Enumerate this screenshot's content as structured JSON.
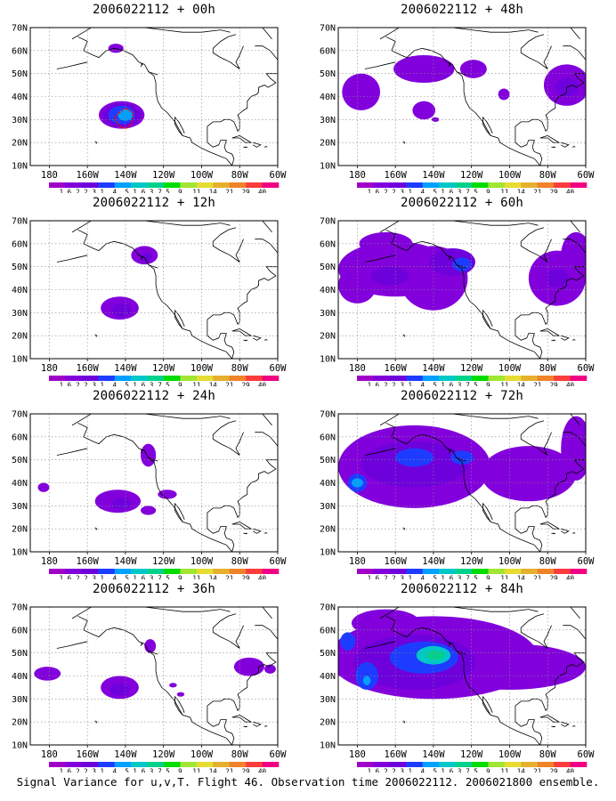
{
  "footer": "Signal Variance for u,v,T. Flight 46. Observation time 2006022112. 2006021800 ensemble.",
  "colorbar": {
    "labels": [
      "1.6",
      "2.2",
      "3.1",
      "4",
      "5.1",
      "6.3",
      "7.5",
      "9",
      "11",
      "14",
      "21",
      "29",
      "40"
    ],
    "colors": [
      "#a000c8",
      "#8200dc",
      "#6e00dc",
      "#1e3cff",
      "#00a0ff",
      "#00c8c8",
      "#00d28c",
      "#00dc00",
      "#a0e632",
      "#e6dc32",
      "#e6af2d",
      "#f08228",
      "#fa3c3c",
      "#f00082"
    ]
  },
  "chart_data": [
    {
      "type": "heatmap",
      "title": "2006022112 + 00h",
      "lon_ticks": [
        "180",
        "160W",
        "140W",
        "120W",
        "100W",
        "80W",
        "60W"
      ],
      "lat_ticks": [
        "10N",
        "20N",
        "30N",
        "40N",
        "50N",
        "60N",
        "70N"
      ],
      "xlim": [
        -190,
        -60
      ],
      "ylim": [
        10,
        70
      ],
      "grid": true,
      "region": "North Pacific / North America",
      "blobs": [
        {
          "lon": -142,
          "lat": 32,
          "rx": 12,
          "ry": 6,
          "level": 1.6
        },
        {
          "lon": -142,
          "lat": 32,
          "rx": 10,
          "ry": 5,
          "level": 2.2
        },
        {
          "lon": -142,
          "lat": 32,
          "rx": 7,
          "ry": 4,
          "level": 3.1
        },
        {
          "lon": -140,
          "lat": 32,
          "rx": 4,
          "ry": 2.5,
          "level": 4
        },
        {
          "lon": -145,
          "lat": 61,
          "rx": 4,
          "ry": 2,
          "level": 1.6
        }
      ],
      "observations": {
        "color": "#ff0000",
        "description": "flight 46 track"
      }
    },
    {
      "type": "heatmap",
      "title": "2006022112 + 48h",
      "lon_ticks": [
        "180",
        "160W",
        "140W",
        "120W",
        "100W",
        "80W",
        "60W"
      ],
      "lat_ticks": [
        "10N",
        "20N",
        "30N",
        "40N",
        "50N",
        "60N",
        "70N"
      ],
      "xlim": [
        -190,
        -60
      ],
      "ylim": [
        10,
        70
      ],
      "grid": true,
      "blobs": [
        {
          "lon": -178,
          "lat": 42,
          "rx": 10,
          "ry": 8,
          "level": 1.6
        },
        {
          "lon": -145,
          "lat": 52,
          "rx": 16,
          "ry": 6,
          "level": 1.6
        },
        {
          "lon": -145,
          "lat": 34,
          "rx": 6,
          "ry": 4,
          "level": 1.6
        },
        {
          "lon": -119,
          "lat": 52,
          "rx": 7,
          "ry": 4,
          "level": 1.6
        },
        {
          "lon": -103,
          "lat": 41,
          "rx": 3,
          "ry": 2.5,
          "level": 1.6
        },
        {
          "lon": -70,
          "lat": 45,
          "rx": 12,
          "ry": 9,
          "level": 1.6
        },
        {
          "lon": -70,
          "lat": 44,
          "rx": 6,
          "ry": 4,
          "level": 2.2
        },
        {
          "lon": -139,
          "lat": 30,
          "rx": 2,
          "ry": 1,
          "level": 1.6
        }
      ]
    },
    {
      "type": "heatmap",
      "title": "2006022112 + 12h",
      "lon_ticks": [
        "180",
        "160W",
        "140W",
        "120W",
        "100W",
        "80W",
        "60W"
      ],
      "lat_ticks": [
        "10N",
        "20N",
        "30N",
        "40N",
        "50N",
        "60N",
        "70N"
      ],
      "xlim": [
        -190,
        -60
      ],
      "ylim": [
        10,
        70
      ],
      "grid": true,
      "blobs": [
        {
          "lon": -143,
          "lat": 32,
          "rx": 10,
          "ry": 5,
          "level": 1.6
        },
        {
          "lon": -142,
          "lat": 31,
          "rx": 5,
          "ry": 3,
          "level": 2.2
        },
        {
          "lon": -130,
          "lat": 55,
          "rx": 7,
          "ry": 4,
          "level": 1.6
        },
        {
          "lon": -129,
          "lat": 54,
          "rx": 3,
          "ry": 2,
          "level": 2.2
        }
      ]
    },
    {
      "type": "heatmap",
      "title": "2006022112 + 60h",
      "lon_ticks": [
        "180",
        "160W",
        "140W",
        "120W",
        "100W",
        "80W",
        "60W"
      ],
      "lat_ticks": [
        "10N",
        "20N",
        "30N",
        "40N",
        "50N",
        "60N",
        "70N"
      ],
      "xlim": [
        -190,
        -60
      ],
      "ylim": [
        10,
        70
      ],
      "grid": true,
      "blobs": [
        {
          "lon": -160,
          "lat": 49,
          "rx": 30,
          "ry": 12,
          "level": 1.6
        },
        {
          "lon": -165,
          "lat": 60,
          "rx": 14,
          "ry": 5,
          "level": 1.6
        },
        {
          "lon": -140,
          "lat": 45,
          "rx": 18,
          "ry": 14,
          "level": 1.6
        },
        {
          "lon": -180,
          "lat": 42,
          "rx": 10,
          "ry": 8,
          "level": 1.6
        },
        {
          "lon": -130,
          "lat": 52,
          "rx": 12,
          "ry": 6,
          "level": 2.2
        },
        {
          "lon": -125,
          "lat": 51,
          "rx": 5,
          "ry": 3,
          "level": 3.1
        },
        {
          "lon": -163,
          "lat": 46,
          "rx": 10,
          "ry": 4,
          "level": 2.2
        },
        {
          "lon": -75,
          "lat": 45,
          "rx": 15,
          "ry": 12,
          "level": 1.6
        },
        {
          "lon": -65,
          "lat": 55,
          "rx": 8,
          "ry": 10,
          "level": 1.6
        },
        {
          "lon": -75,
          "lat": 45,
          "rx": 6,
          "ry": 4,
          "level": 2.2
        }
      ]
    },
    {
      "type": "heatmap",
      "title": "2006022112 + 24h",
      "lon_ticks": [
        "180",
        "160W",
        "140W",
        "120W",
        "100W",
        "80W",
        "60W"
      ],
      "lat_ticks": [
        "10N",
        "20N",
        "30N",
        "40N",
        "50N",
        "60N",
        "70N"
      ],
      "xlim": [
        -190,
        -60
      ],
      "ylim": [
        10,
        70
      ],
      "grid": true,
      "blobs": [
        {
          "lon": -144,
          "lat": 32,
          "rx": 12,
          "ry": 5,
          "level": 1.6
        },
        {
          "lon": -142,
          "lat": 31,
          "rx": 5,
          "ry": 2.5,
          "level": 2.2
        },
        {
          "lon": -128,
          "lat": 52,
          "rx": 4,
          "ry": 5,
          "level": 1.6
        },
        {
          "lon": -118,
          "lat": 35,
          "rx": 5,
          "ry": 2,
          "level": 1.6
        },
        {
          "lon": -183,
          "lat": 38,
          "rx": 3,
          "ry": 2,
          "level": 1.6
        },
        {
          "lon": -128,
          "lat": 28,
          "rx": 4,
          "ry": 2,
          "level": 1.6
        }
      ]
    },
    {
      "type": "heatmap",
      "title": "2006022112 + 72h",
      "lon_ticks": [
        "180",
        "160W",
        "140W",
        "120W",
        "100W",
        "80W",
        "60W"
      ],
      "lat_ticks": [
        "10N",
        "20N",
        "30N",
        "40N",
        "50N",
        "60N",
        "70N"
      ],
      "xlim": [
        -190,
        -60
      ],
      "ylim": [
        10,
        70
      ],
      "grid": true,
      "blobs": [
        {
          "lon": -150,
          "lat": 47,
          "rx": 40,
          "ry": 18,
          "level": 1.6
        },
        {
          "lon": -90,
          "lat": 44,
          "rx": 25,
          "ry": 12,
          "level": 1.6
        },
        {
          "lon": -65,
          "lat": 55,
          "rx": 8,
          "ry": 14,
          "level": 1.6
        },
        {
          "lon": -150,
          "lat": 48,
          "rx": 28,
          "ry": 10,
          "level": 2.2
        },
        {
          "lon": -150,
          "lat": 51,
          "rx": 10,
          "ry": 4,
          "level": 3.1
        },
        {
          "lon": -125,
          "lat": 51,
          "rx": 6,
          "ry": 3,
          "level": 3.1
        },
        {
          "lon": -180,
          "lat": 40,
          "rx": 5,
          "ry": 4,
          "level": 3.1
        },
        {
          "lon": -180,
          "lat": 40,
          "rx": 3,
          "ry": 2,
          "level": 4
        }
      ]
    },
    {
      "type": "heatmap",
      "title": "2006022112 + 36h",
      "lon_ticks": [
        "180",
        "160W",
        "140W",
        "120W",
        "100W",
        "80W",
        "60W"
      ],
      "lat_ticks": [
        "10N",
        "20N",
        "30N",
        "40N",
        "50N",
        "60N",
        "70N"
      ],
      "xlim": [
        -190,
        -60
      ],
      "ylim": [
        10,
        70
      ],
      "grid": true,
      "blobs": [
        {
          "lon": -181,
          "lat": 41,
          "rx": 7,
          "ry": 3,
          "level": 1.6
        },
        {
          "lon": -143,
          "lat": 35,
          "rx": 10,
          "ry": 5,
          "level": 1.6
        },
        {
          "lon": -143,
          "lat": 34,
          "rx": 5,
          "ry": 2.5,
          "level": 2.2
        },
        {
          "lon": -127,
          "lat": 53,
          "rx": 3,
          "ry": 3,
          "level": 1.6
        },
        {
          "lon": -75,
          "lat": 44,
          "rx": 8,
          "ry": 4,
          "level": 1.6
        },
        {
          "lon": -115,
          "lat": 36,
          "rx": 2,
          "ry": 1,
          "level": 1.6
        },
        {
          "lon": -111,
          "lat": 32,
          "rx": 2,
          "ry": 1,
          "level": 1.6
        },
        {
          "lon": -64,
          "lat": 43,
          "rx": 3,
          "ry": 2,
          "level": 1.6
        }
      ]
    },
    {
      "type": "heatmap",
      "title": "2006022112 + 84h",
      "lon_ticks": [
        "180",
        "160W",
        "140W",
        "120W",
        "100W",
        "80W",
        "60W"
      ],
      "lat_ticks": [
        "10N",
        "20N",
        "30N",
        "40N",
        "50N",
        "60N",
        "70N"
      ],
      "xlim": [
        -190,
        -60
      ],
      "ylim": [
        10,
        70
      ],
      "grid": true,
      "blobs": [
        {
          "lon": -140,
          "lat": 48,
          "rx": 55,
          "ry": 18,
          "level": 1.6
        },
        {
          "lon": -100,
          "lat": 44,
          "rx": 40,
          "ry": 10,
          "level": 1.6
        },
        {
          "lon": -165,
          "lat": 63,
          "rx": 18,
          "ry": 6,
          "level": 1.6
        },
        {
          "lon": -150,
          "lat": 46,
          "rx": 32,
          "ry": 12,
          "level": 2.2
        },
        {
          "lon": -145,
          "lat": 48,
          "rx": 18,
          "ry": 7,
          "level": 3.1
        },
        {
          "lon": -175,
          "lat": 40,
          "rx": 6,
          "ry": 6,
          "level": 3.1
        },
        {
          "lon": -185,
          "lat": 55,
          "rx": 4,
          "ry": 4,
          "level": 3.1
        },
        {
          "lon": -140,
          "lat": 49,
          "rx": 9,
          "ry": 4,
          "level": 5.1
        },
        {
          "lon": -139,
          "lat": 49,
          "rx": 5,
          "ry": 2,
          "level": 6.3
        },
        {
          "lon": -175,
          "lat": 38,
          "rx": 2,
          "ry": 2,
          "level": 4
        }
      ]
    }
  ]
}
